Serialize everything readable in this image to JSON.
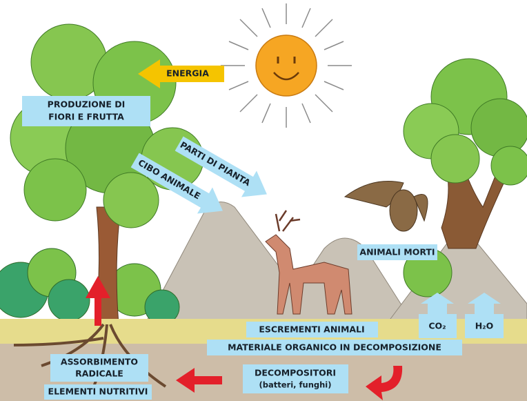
{
  "energy": "ENERGIA",
  "flowers_fruit": [
    "PRODUZIONE DI",
    "FIORI E FRUTTA"
  ],
  "plant_parts": "PARTI DI PIANTA",
  "animal_food": "CIBO ANIMALE",
  "dead_animals": "ANIMALI MORTI",
  "co2": "CO₂",
  "h2o": "H₂O",
  "animal_droppings": "ESCREMENTI ANIMALI",
  "organic_matter": "MATERIALE ORGANICO IN DECOMPOSIZIONE",
  "root_absorption": [
    "ASSORBIMENTO",
    "RADICALE"
  ],
  "nutrients": "ELEMENTI NUTRITIVI",
  "decomposers": [
    "DECOMPOSITORI",
    "(batteri, funghi)"
  ]
}
